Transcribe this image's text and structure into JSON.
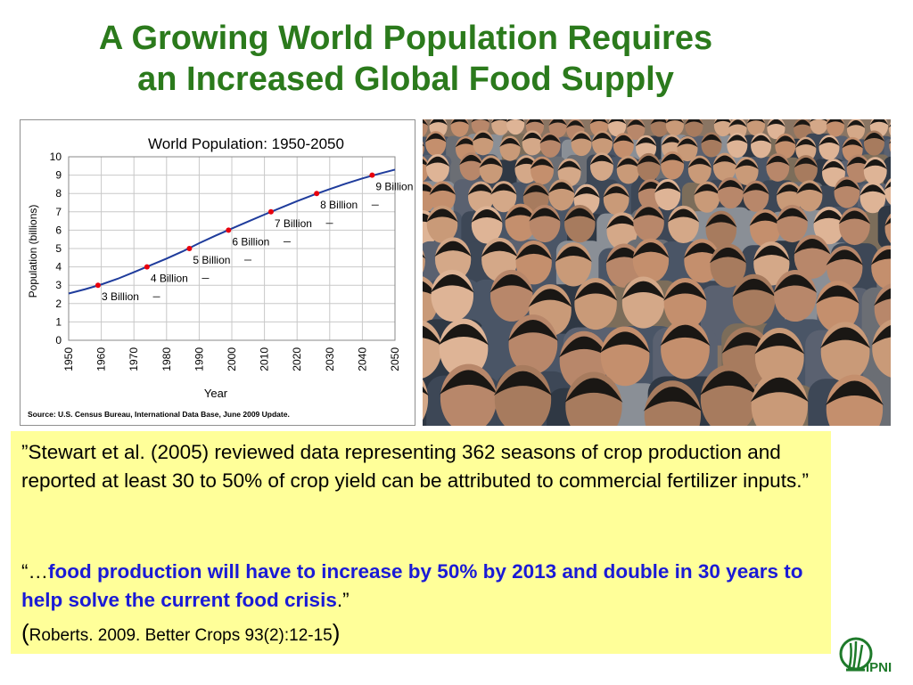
{
  "slide": {
    "title_line1": "A Growing World Population Requires",
    "title_line2": "an Increased Global Food Supply"
  },
  "chart_data": {
    "type": "line",
    "title": "World Population: 1950-2050",
    "xlabel": "Year",
    "ylabel": "Population (billions)",
    "xlim": [
      1950,
      2050
    ],
    "ylim": [
      0,
      10
    ],
    "x_ticks": [
      "1950",
      "1960",
      "1970",
      "1980",
      "1990",
      "2000",
      "2010",
      "2020",
      "2030",
      "2040",
      "2050"
    ],
    "y_ticks": [
      "0",
      "1",
      "2",
      "3",
      "4",
      "5",
      "6",
      "7",
      "8",
      "9",
      "10"
    ],
    "grid": true,
    "series": [
      {
        "x": [
          1950,
          1955,
          1960,
          1965,
          1970,
          1975,
          1980,
          1985,
          1990,
          1995,
          2000,
          2005,
          2010,
          2015,
          2020,
          2025,
          2030,
          2035,
          2040,
          2045,
          2050
        ],
        "y": [
          2.55,
          2.78,
          3.04,
          3.35,
          3.71,
          4.08,
          4.45,
          4.85,
          5.29,
          5.7,
          6.09,
          6.47,
          6.85,
          7.22,
          7.58,
          7.92,
          8.24,
          8.54,
          8.82,
          9.07,
          9.3
        ],
        "color": "#1f3c9c"
      }
    ],
    "milestones": [
      {
        "x": 1959,
        "y": 3,
        "label": "3 Billion"
      },
      {
        "x": 1974,
        "y": 4,
        "label": "4 Billion"
      },
      {
        "x": 1987,
        "y": 5,
        "label": "5 Billion"
      },
      {
        "x": 1999,
        "y": 6,
        "label": "6 Billion"
      },
      {
        "x": 2012,
        "y": 7,
        "label": "7 Billion"
      },
      {
        "x": 2026,
        "y": 8,
        "label": "8 Billion"
      },
      {
        "x": 2043,
        "y": 9,
        "label": "9 Billion"
      }
    ],
    "source": "Source: U.S. Census Bureau, International Data Base, June 2009 Update.",
    "marker_color": "#e8000d"
  },
  "quote": {
    "line1_text": "”Stewart et al. (2005) reviewed data representing 362 seasons of crop production and reported at least 30 to 50% of crop yield can be attributed to commercial fertilizer inputs.”",
    "line2_open": "“…",
    "line2_bold": "food production will have to increase by 50% by 2013 and double in 30 years to help solve the current food crisis",
    "line2_close": ".”",
    "paren_open": "(",
    "citation": "Roberts. 2009. Better Crops 93(2):12-15",
    "paren_close": ")"
  },
  "logo": {
    "text": "IPNI",
    "color": "#1e7a2a"
  },
  "colors": {
    "title": "#2b7a1c",
    "quote_bg": "#ffff99",
    "emphasis": "#1a1ad6"
  }
}
